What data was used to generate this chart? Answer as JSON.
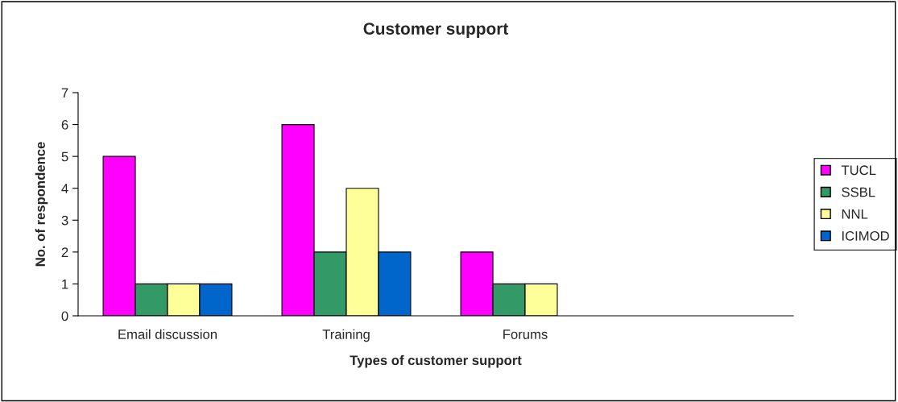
{
  "chart_data": {
    "type": "bar",
    "title": "Customer support",
    "xlabel": "Types of customer support",
    "ylabel": "No. of respondence",
    "categories": [
      "Email discussion",
      "Training",
      "Forums",
      null
    ],
    "series": [
      {
        "name": "TUCL",
        "color": "#ff00ff",
        "values": [
          5,
          6,
          2,
          null
        ]
      },
      {
        "name": "SSBL",
        "color": "#339966",
        "values": [
          1,
          2,
          1,
          null
        ]
      },
      {
        "name": "NNL",
        "color": "#ffff99",
        "values": [
          1,
          4,
          1,
          null
        ]
      },
      {
        "name": "ICIMOD",
        "color": "#0066cc",
        "values": [
          1,
          2,
          null,
          null
        ]
      }
    ],
    "ylim": [
      0,
      7
    ],
    "yticks": [
      0,
      1,
      2,
      3,
      4,
      5,
      6,
      7
    ],
    "grid": false,
    "legend": "right"
  }
}
